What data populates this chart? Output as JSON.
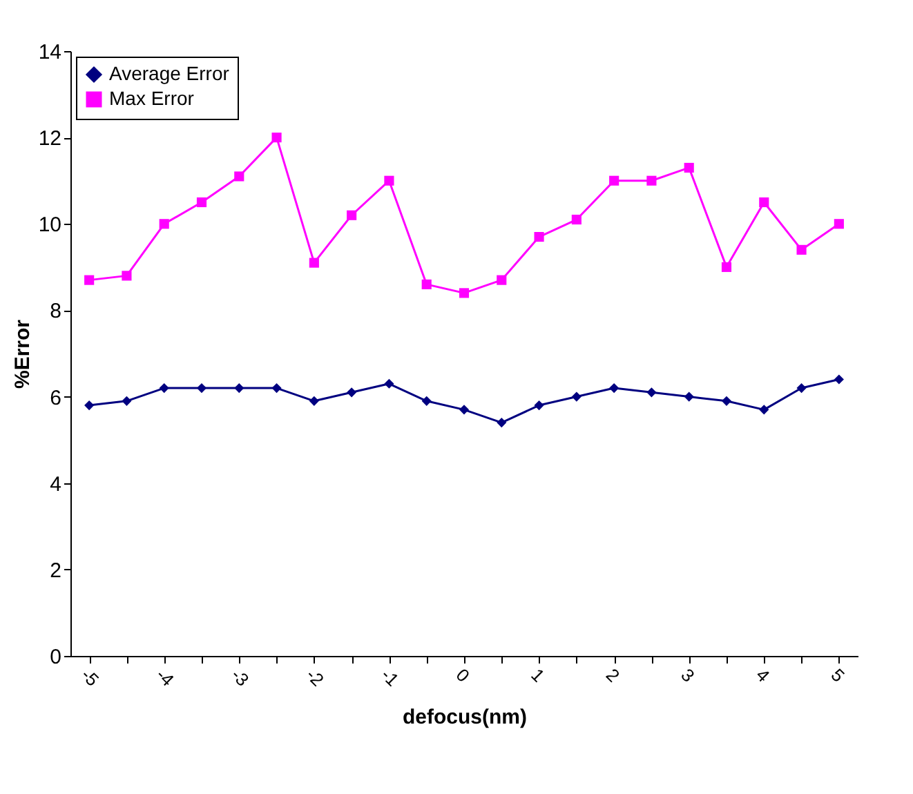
{
  "chart_data": {
    "type": "line",
    "xlabel": "defocus(nm)",
    "ylabel": "%Error",
    "categories": [
      "-5",
      null,
      "-4",
      null,
      "-3",
      null,
      "-2",
      null,
      "-1",
      null,
      "0",
      null,
      "1",
      null,
      "2",
      null,
      "3",
      null,
      "4",
      null,
      "5"
    ],
    "series": [
      {
        "name": "Average Error",
        "color": "#000080",
        "marker": "diamond",
        "values": [
          5.8,
          5.9,
          6.2,
          6.2,
          6.2,
          6.2,
          5.9,
          6.1,
          6.3,
          5.9,
          5.7,
          5.4,
          5.8,
          6.0,
          6.2,
          6.1,
          6.0,
          5.9,
          5.7,
          6.2,
          6.4
        ]
      },
      {
        "name": "Max Error",
        "color": "#ff00ff",
        "marker": "square",
        "values": [
          8.7,
          8.8,
          10.0,
          10.5,
          11.1,
          12.0,
          9.1,
          10.2,
          11.0,
          8.6,
          8.4,
          8.7,
          9.7,
          10.1,
          11.0,
          11.0,
          11.3,
          9.0,
          10.5,
          9.4,
          10.0
        ]
      }
    ],
    "ylim": [
      0,
      14
    ],
    "yticks": [
      0,
      2,
      4,
      6,
      8,
      10,
      12,
      14
    ],
    "grid": false,
    "legend": "top left",
    "line_style": "solid"
  }
}
